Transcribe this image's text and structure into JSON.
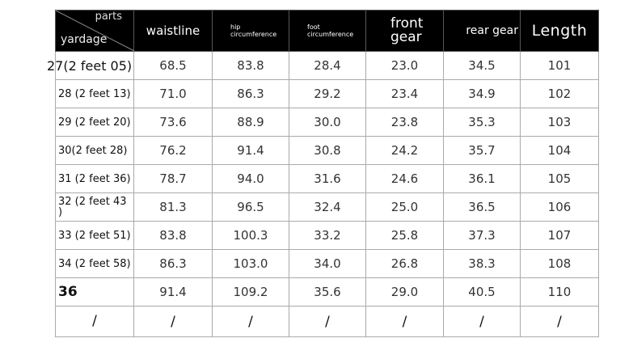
{
  "header": {
    "corner_top": "parts",
    "corner_bottom": "yardage",
    "columns": [
      "waistline",
      "hip circumference",
      "foot circumference",
      "front gear",
      "rear gear",
      "Length"
    ]
  },
  "rows": [
    {
      "size": "27(2 feet 05)",
      "values": [
        "68.5",
        "83.8",
        "28.4",
        "23.0",
        "34.5",
        "101"
      ]
    },
    {
      "size": "28 (2 feet 13)",
      "values": [
        "71.0",
        "86.3",
        "29.2",
        "23.4",
        "34.9",
        "102"
      ]
    },
    {
      "size": "29 (2 feet 20)",
      "values": [
        "73.6",
        "88.9",
        "30.0",
        "23.8",
        "35.3",
        "103"
      ]
    },
    {
      "size": "30(2 feet 28)",
      "values": [
        "76.2",
        "91.4",
        "30.8",
        "24.2",
        "35.7",
        "104"
      ]
    },
    {
      "size": "31 (2 feet 36)",
      "values": [
        "78.7",
        "94.0",
        "31.6",
        "24.6",
        "36.1",
        "105"
      ]
    },
    {
      "size": "32 (2 feet 43 )",
      "values": [
        "81.3",
        "96.5",
        "32.4",
        "25.0",
        "36.5",
        "106"
      ]
    },
    {
      "size": "33 (2 feet 51)",
      "values": [
        "83.8",
        "100.3",
        "33.2",
        "25.8",
        "37.3",
        "107"
      ]
    },
    {
      "size": "34 (2 feet 58)",
      "values": [
        "86.3",
        "103.0",
        "34.0",
        "26.8",
        "38.3",
        "108"
      ]
    },
    {
      "size": "36",
      "values": [
        "91.4",
        "109.2",
        "35.6",
        "29.0",
        "40.5",
        "110"
      ]
    },
    {
      "size": "/",
      "values": [
        "/",
        "/",
        "/",
        "/",
        "/",
        "/"
      ]
    }
  ]
}
